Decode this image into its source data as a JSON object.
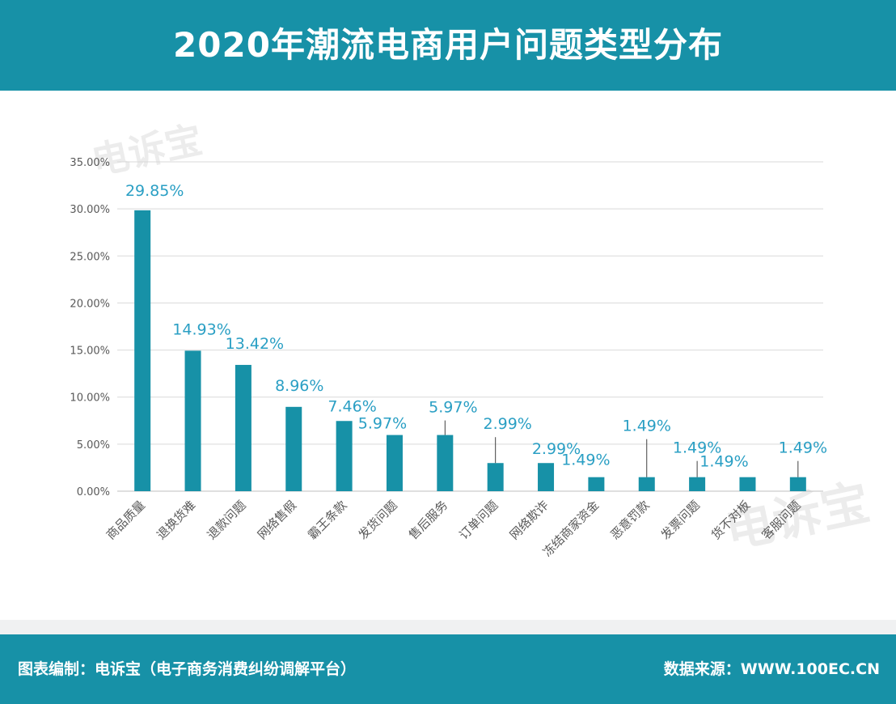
{
  "header": {
    "title": "2020年潮流电商用户问题类型分布"
  },
  "footer": {
    "left": "图表编制：电诉宝（电子商务消费纠纷调解平台）",
    "right": "数据来源：WWW.100EC.CN"
  },
  "watermark": {
    "logo_text": "电诉宝"
  },
  "chart_data": {
    "type": "bar",
    "categories": [
      "商品质量",
      "退换货难",
      "退款问题",
      "网络售假",
      "霸王条款",
      "发货问题",
      "售后服务",
      "订单问题",
      "网络欺诈",
      "冻结商家资金",
      "恶意罚款",
      "发票问题",
      "货不对板",
      "客服问题"
    ],
    "values": [
      29.85,
      14.93,
      13.42,
      8.96,
      7.46,
      5.97,
      5.97,
      2.99,
      2.99,
      1.49,
      1.49,
      1.49,
      1.49,
      1.49
    ],
    "data_labels": [
      "29.85%",
      "14.93%",
      "13.42%",
      "8.96%",
      "7.46%",
      "5.97%",
      "5.97%",
      "2.99%",
      "2.99%",
      "1.49%",
      "1.49%",
      "1.49%",
      "1.49%",
      "1.49%"
    ],
    "y_ticks": [
      "0.00%",
      "5.00%",
      "10.00%",
      "15.00%",
      "20.00%",
      "25.00%",
      "30.00%",
      "35.00%"
    ],
    "ylim": [
      0,
      35
    ],
    "grid": true,
    "bar_color": "#1791a7",
    "label_color": "#2a9fc4"
  }
}
